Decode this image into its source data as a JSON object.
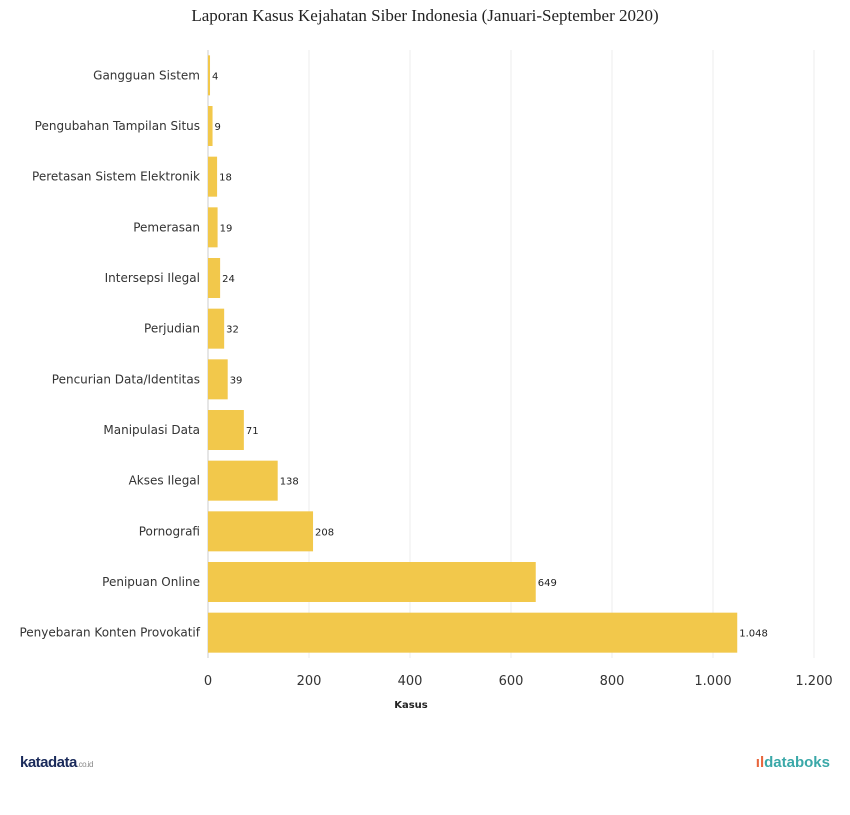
{
  "chart_data": {
    "type": "bar",
    "orientation": "horizontal",
    "title": "Laporan Kasus Kejahatan Siber Indonesia (Januari-September 2020)",
    "xlabel": "Kasus",
    "ylabel": "",
    "categories": [
      "Gangguan Sistem",
      "Pengubahan Tampilan Situs",
      "Peretasan Sistem Elektronik",
      "Pemerasan",
      "Intersepsi Ilegal",
      "Perjudian",
      "Pencurian Data/Identitas",
      "Manipulasi Data",
      "Akses Ilegal",
      "Pornografi",
      "Penipuan Online",
      "Penyebaran Konten Provokatif"
    ],
    "values": [
      4,
      9,
      18,
      19,
      24,
      32,
      39,
      71,
      138,
      208,
      649,
      1048
    ],
    "data_labels": [
      "4",
      "9",
      "18",
      "19",
      "24",
      "32",
      "39",
      "71",
      "138",
      "208",
      "649",
      "1.048"
    ],
    "xlim": [
      0,
      1200
    ],
    "xticks": [
      0,
      200,
      400,
      600,
      800,
      1000,
      1200
    ],
    "xtick_labels": [
      "0",
      "200",
      "400",
      "600",
      "800",
      "1.000",
      "1.200"
    ],
    "grid": true,
    "bar_color": "#f2c84b"
  },
  "footer": {
    "left_logo": "katadata",
    "left_logo_suffix": ".co.id",
    "right_logo": "databoks"
  }
}
